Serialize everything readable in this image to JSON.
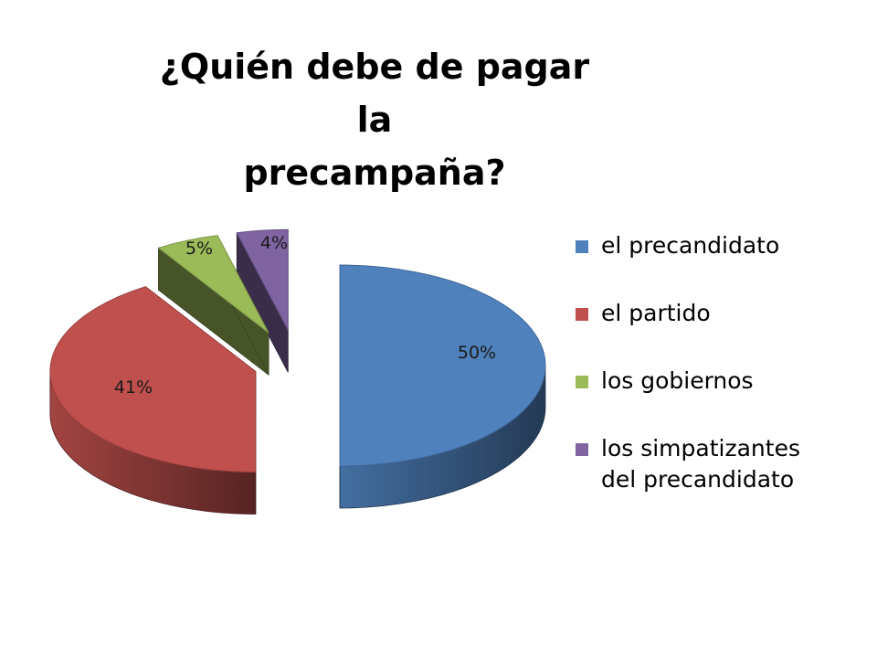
{
  "title_lines": [
    "¿Quién debe de pagar la",
    "precampaña?"
  ],
  "chart_data": {
    "type": "pie",
    "title": "¿Quién debe de pagar la precampaña?",
    "style": "3d-exploded",
    "legend_position": "right",
    "categories": [
      "el precandidato",
      "el partido",
      "los gobiernos",
      "los simpatizantes del precandidato"
    ],
    "legend_labels": [
      "el precandidato",
      "el partido",
      "los gobiernos",
      "los simpatizantes\ndel precandidato"
    ],
    "values": [
      50,
      41,
      5,
      4
    ],
    "labels": [
      "50%",
      "41%",
      "5%",
      "4%"
    ],
    "colors": [
      "#4f81bd",
      "#c0504d",
      "#9bbb59",
      "#8064a2"
    ]
  }
}
